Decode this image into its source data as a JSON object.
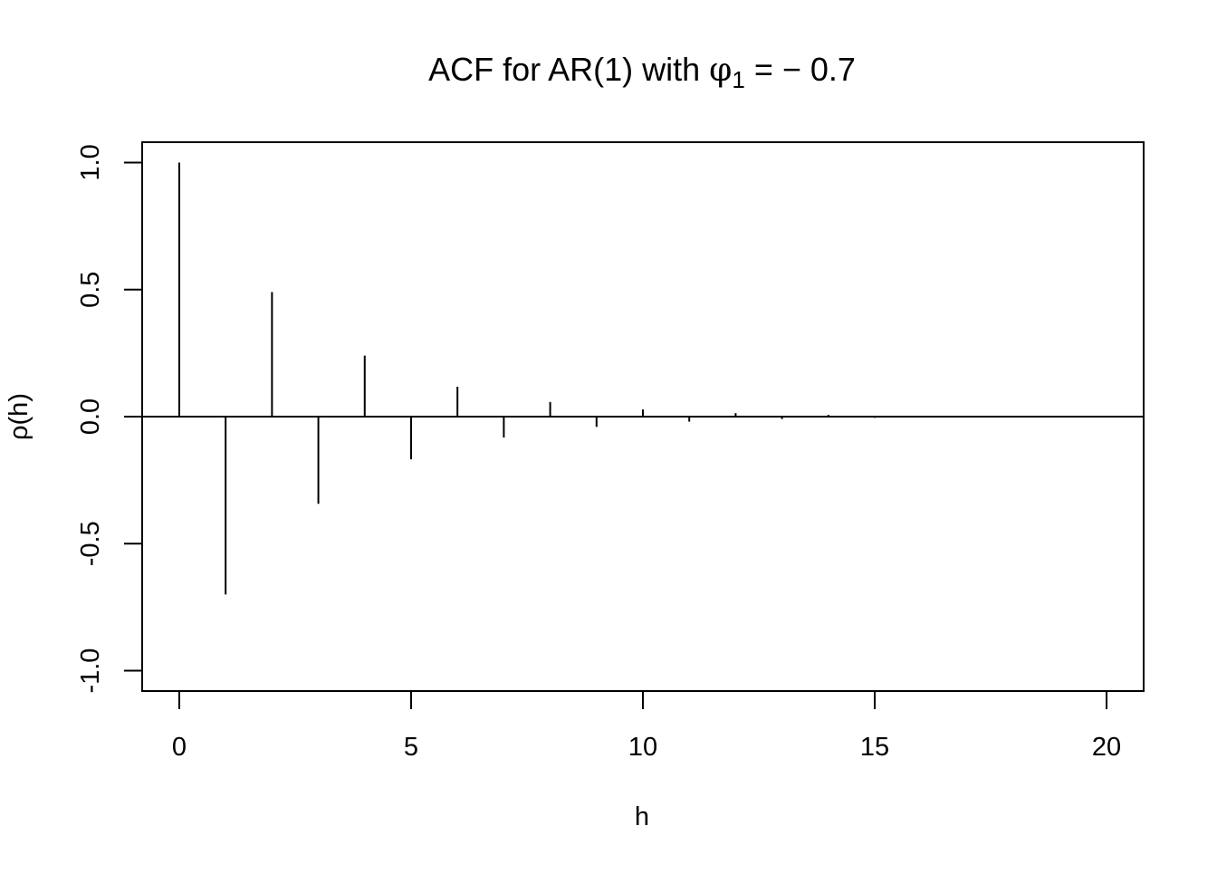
{
  "chart_data": {
    "type": "bar",
    "title": {
      "prefix": "ACF for AR(1) with ",
      "symbol": "φ",
      "subscript": "1",
      "suffix": " = − 0.7"
    },
    "xlabel": "h",
    "ylabel": "ρ(h)",
    "xlim": [
      -0.8,
      20.8
    ],
    "ylim": [
      -1.08,
      1.08
    ],
    "x_ticks": [
      {
        "value": 0,
        "label": "0"
      },
      {
        "value": 5,
        "label": "5"
      },
      {
        "value": 10,
        "label": "10"
      },
      {
        "value": 15,
        "label": "15"
      },
      {
        "value": 20,
        "label": "20"
      }
    ],
    "y_ticks": [
      {
        "value": -1,
        "label": "-1.0"
      },
      {
        "value": -0.5,
        "label": "-0.5"
      },
      {
        "value": 0,
        "label": "0.0"
      },
      {
        "value": 0.5,
        "label": "0.5"
      },
      {
        "value": 1,
        "label": "1.0"
      }
    ],
    "x": [
      0,
      1,
      2,
      3,
      4,
      5,
      6,
      7,
      8,
      9,
      10,
      11,
      12,
      13,
      14,
      15,
      16,
      17,
      18,
      19,
      20
    ],
    "values": [
      1.0,
      -0.7,
      0.49,
      -0.343,
      0.2401,
      -0.1681,
      0.1176,
      -0.0824,
      0.0576,
      -0.0404,
      0.0282,
      -0.0198,
      0.0138,
      -0.0097,
      0.0068,
      -0.0047,
      0.0033,
      -0.0023,
      0.0016,
      -0.0011,
      0.0008
    ],
    "zero_line": true,
    "grid": false,
    "legend": "none",
    "colors": {
      "line": "#000000",
      "background": "#ffffff"
    }
  }
}
